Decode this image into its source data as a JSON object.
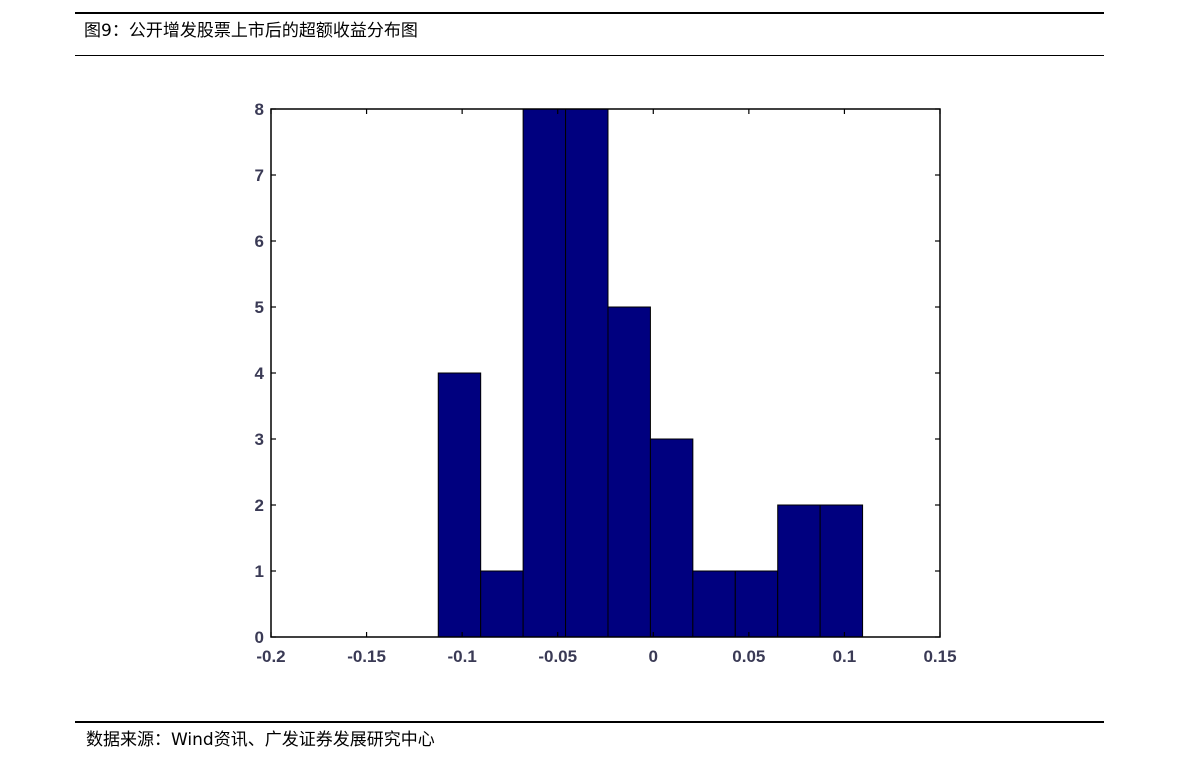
{
  "caption": "图9：公开增发股票上市后的超额收益分布图",
  "source": "数据来源：Wind资讯、广发证券发展研究中心",
  "colors": {
    "bar_fill": "#00007F",
    "bar_edge": "#000000",
    "axis": "#000000",
    "tick_label": "#3A3A55"
  },
  "chart_data": {
    "type": "bar",
    "subtype": "histogram",
    "title": "",
    "xlabel": "",
    "ylabel": "",
    "xlim": [
      -0.2,
      0.15
    ],
    "ylim": [
      0,
      8
    ],
    "xticks": [
      -0.2,
      -0.15,
      -0.1,
      -0.05,
      0,
      0.05,
      0.1,
      0.15
    ],
    "xtick_labels": [
      "-0.2",
      "-0.15",
      "-0.1",
      "-0.05",
      "0",
      "0.05",
      "0.1",
      "0.15"
    ],
    "yticks": [
      0,
      1,
      2,
      3,
      4,
      5,
      6,
      7,
      8
    ],
    "ytick_labels": [
      "0",
      "1",
      "2",
      "3",
      "4",
      "5",
      "6",
      "7",
      "8"
    ],
    "grid": false,
    "bins": [
      {
        "x0": -0.1125,
        "x1": -0.0903,
        "count": 4
      },
      {
        "x0": -0.0903,
        "x1": -0.0681,
        "count": 1
      },
      {
        "x0": -0.0681,
        "x1": -0.0459,
        "count": 8
      },
      {
        "x0": -0.0459,
        "x1": -0.0237,
        "count": 8
      },
      {
        "x0": -0.0237,
        "x1": -0.0015,
        "count": 5
      },
      {
        "x0": -0.0015,
        "x1": 0.0207,
        "count": 3
      },
      {
        "x0": 0.0207,
        "x1": 0.0429,
        "count": 1
      },
      {
        "x0": 0.0429,
        "x1": 0.0651,
        "count": 1
      },
      {
        "x0": 0.0651,
        "x1": 0.0873,
        "count": 2
      },
      {
        "x0": 0.0873,
        "x1": 0.1095,
        "count": 2
      }
    ]
  }
}
